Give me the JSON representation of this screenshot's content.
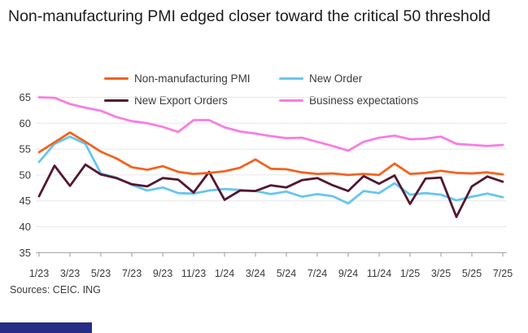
{
  "title": "Non-manufacturing PMI edged closer toward the critical 50 threshold",
  "source_note": "Sources: CEIC. ING",
  "colors": {
    "pmi_orange": "#f2631f",
    "new_order_blue": "#67c6ee",
    "new_export_maroon": "#541731",
    "expectations_pink": "#f97ce4",
    "gridline": "#e7e7e7",
    "axis": "#9a9a9a",
    "text": "#3a3a3a",
    "footer_navy": "#262d87"
  },
  "chart_data": {
    "type": "line",
    "title": "Non-manufacturing PMI edged closer toward the critical 50 threshold",
    "xlabel": "",
    "ylabel": "",
    "ylim": [
      35,
      65
    ],
    "yticks": [
      35,
      40,
      45,
      50,
      55,
      60,
      65
    ],
    "grid": "horizontal",
    "legend_position": "top",
    "x_tick_labels_shown": [
      "1/23",
      "3/23",
      "5/23",
      "7/23",
      "9/23",
      "11/23",
      "1/24",
      "3/24",
      "5/24",
      "7/24",
      "9/24",
      "11/24",
      "1/25",
      "3/25",
      "5/25",
      "7/25"
    ],
    "x": [
      "1/23",
      "2/23",
      "3/23",
      "4/23",
      "5/23",
      "6/23",
      "7/23",
      "8/23",
      "9/23",
      "10/23",
      "11/23",
      "12/23",
      "1/24",
      "2/24",
      "3/24",
      "4/24",
      "5/24",
      "6/24",
      "7/24",
      "8/24",
      "9/24",
      "10/24",
      "11/24",
      "12/24",
      "1/25",
      "2/25",
      "3/25",
      "4/25",
      "5/25",
      "6/25",
      "7/25"
    ],
    "series": [
      {
        "name": "Non-manufacturing PMI",
        "color": "#f2631f",
        "values": [
          54.4,
          56.3,
          58.2,
          56.4,
          54.5,
          53.2,
          51.5,
          51.0,
          51.7,
          50.6,
          50.2,
          50.4,
          50.7,
          51.4,
          53.0,
          51.2,
          51.1,
          50.5,
          50.2,
          50.3,
          50.0,
          50.2,
          50.0,
          52.2,
          50.2,
          50.4,
          50.8,
          50.4,
          50.3,
          50.5,
          50.1
        ]
      },
      {
        "name": "New Order",
        "color": "#67c6ee",
        "values": [
          52.5,
          56.0,
          57.4,
          56.0,
          50.3,
          49.5,
          48.1,
          47.0,
          47.6,
          46.5,
          46.4,
          47.0,
          47.3,
          47.1,
          46.9,
          46.3,
          46.8,
          45.8,
          46.3,
          45.9,
          44.5,
          46.9,
          46.5,
          48.4,
          46.2,
          46.5,
          46.2,
          45.1,
          45.8,
          46.4,
          45.7
        ]
      },
      {
        "name": "New Export Orders",
        "color": "#541731",
        "values": [
          45.9,
          51.8,
          47.9,
          52.0,
          50.1,
          49.4,
          48.2,
          47.8,
          49.4,
          49.1,
          46.6,
          50.6,
          45.2,
          47.0,
          46.9,
          48.0,
          47.6,
          49.0,
          49.4,
          48.0,
          46.9,
          49.8,
          48.3,
          49.9,
          44.4,
          49.3,
          49.5,
          41.9,
          47.8,
          49.7,
          48.7
        ]
      },
      {
        "name": "Business expectations",
        "color": "#f97ce4",
        "values": [
          65.0,
          64.9,
          63.7,
          63.0,
          62.4,
          61.2,
          60.4,
          60.0,
          59.3,
          58.3,
          60.6,
          60.6,
          59.2,
          58.4,
          58.0,
          57.5,
          57.1,
          57.2,
          56.4,
          55.6,
          54.7,
          56.4,
          57.2,
          57.6,
          56.9,
          57.0,
          57.4,
          56.0,
          55.8,
          55.6,
          55.8
        ]
      }
    ]
  }
}
